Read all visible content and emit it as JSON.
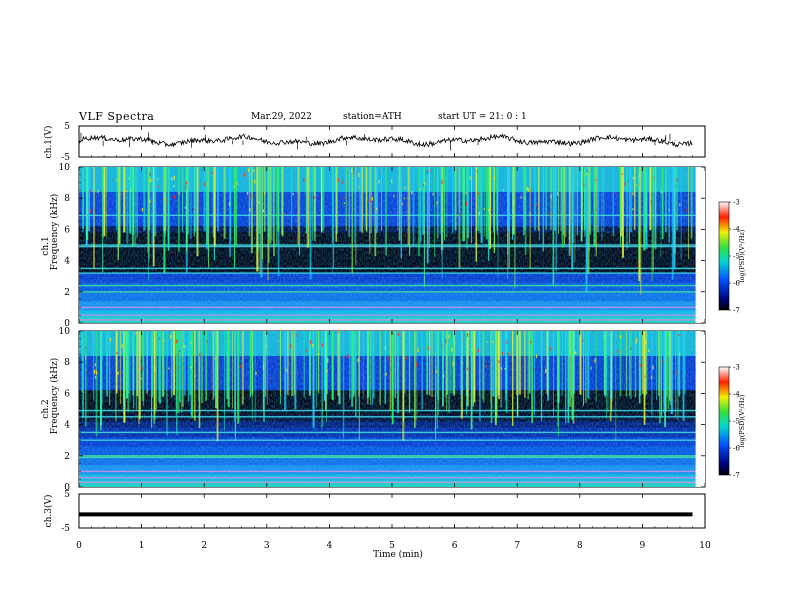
{
  "header": {
    "title": "VLF  Spectra",
    "date": "Mar.29, 2022",
    "station": "station=ATH",
    "start": "start  UT  =    21: 0   : 1"
  },
  "chart_data": [
    {
      "type": "line",
      "panel": "ch1-waveform",
      "ylabel": "ch.1(V)",
      "ylim": [
        -5,
        5
      ],
      "y_ticks": [
        "5",
        "-5"
      ],
      "x_range_min": [
        0,
        9.8
      ],
      "baseline_v": 0.3
    },
    {
      "type": "heatmap",
      "panel": "ch1-spectrogram",
      "ylabel": "ch.1\nFrequency  (kHz)",
      "ylim": [
        0,
        10
      ],
      "y_ticks": [
        "0",
        "2",
        "4",
        "6",
        "8",
        "10"
      ],
      "colorbar": {
        "label": "log(PSD)(V²/Hz)",
        "range": [
          -7,
          -3
        ],
        "ticks": [
          "-3",
          "-4",
          "-5",
          "-6",
          "-7"
        ]
      },
      "features": {
        "quiet_band_khz": [
          3.5,
          5.5
        ],
        "sferic_band_khz": [
          6,
          10
        ],
        "persistent_lines_khz": [
          0.2,
          0.5,
          1.0,
          2.0,
          2.4,
          3.2,
          3.5,
          4.9,
          5.0,
          6.9
        ]
      }
    },
    {
      "type": "heatmap",
      "panel": "ch2-spectrogram",
      "ylabel": "ch.2\nFrequency  (kHz)",
      "ylim": [
        0,
        10
      ],
      "y_ticks": [
        "0",
        "2",
        "4",
        "6",
        "8",
        "10"
      ],
      "colorbar": {
        "label": "log(PSD)(V²/Hz)",
        "range": [
          -7,
          -3
        ],
        "ticks": [
          "-3",
          "-4",
          "-5",
          "-6",
          "-7"
        ]
      },
      "features": {
        "quiet_band_khz": [
          5.0,
          6.0
        ],
        "sferic_band_khz": [
          6,
          10
        ],
        "persistent_lines_khz": [
          0.3,
          0.6,
          1.0,
          1.9,
          2.0,
          3.0,
          3.5,
          4.5,
          4.9
        ]
      }
    },
    {
      "type": "line",
      "panel": "ch3-waveform",
      "ylabel": "ch.3(V)",
      "ylim": [
        -5,
        5
      ],
      "y_ticks": [
        "5",
        "-5"
      ],
      "constant_v": -1.0
    }
  ],
  "xaxis": {
    "label": "Time  (min)",
    "range": [
      0,
      10
    ],
    "ticks": [
      "0",
      "1",
      "2",
      "3",
      "4",
      "5",
      "6",
      "7",
      "8",
      "9",
      "10"
    ]
  }
}
